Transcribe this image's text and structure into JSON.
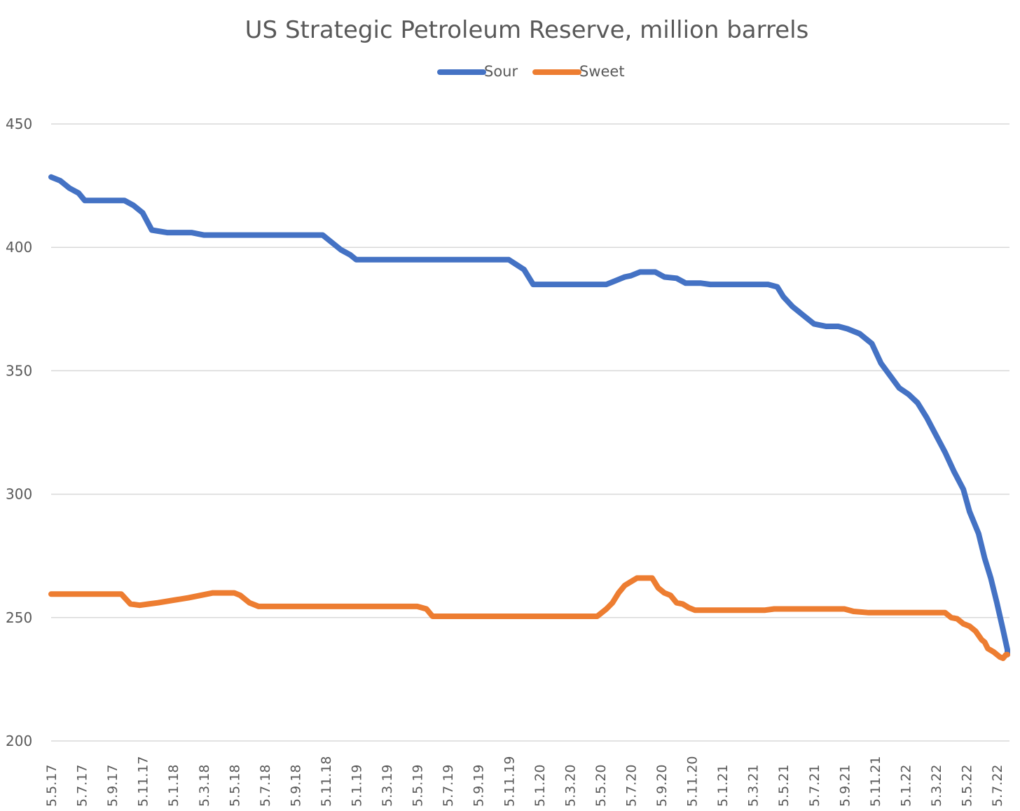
{
  "chart_data": {
    "type": "line",
    "title": "US Strategic Petroleum Reserve, million barrels",
    "xlabel": "",
    "ylabel": "",
    "ylim": [
      200,
      450
    ],
    "y_ticks": [
      "450",
      "400",
      "350",
      "300",
      "250",
      "200"
    ],
    "grid": true,
    "legend_position": "top",
    "x_tick_labels": [
      "5.5.17",
      "5.7.17",
      "5.9.17",
      "5.11.17",
      "5.1.18",
      "5.3.18",
      "5.5.18",
      "5.7.18",
      "5.9.18",
      "5.11.18",
      "5.1.19",
      "5.3.19",
      "5.5.19",
      "5.7.19",
      "5.9.19",
      "5.11.19",
      "5.1.20",
      "5.3.20",
      "5.5.20",
      "5.7.20",
      "5.9.20",
      "5.11.20",
      "5.1.21",
      "5.3.21",
      "5.5.21",
      "5.7.21",
      "5.9.21",
      "5.11.21",
      "5.1.22",
      "5.3.22",
      "5.5.22",
      "5.7.22"
    ],
    "series": [
      {
        "name": "Sour",
        "color": "#4472C4",
        "points": [
          [
            0,
            428.5
          ],
          [
            0.3,
            427
          ],
          [
            0.6,
            424
          ],
          [
            0.9,
            422
          ],
          [
            1.1,
            419
          ],
          [
            1.5,
            419
          ],
          [
            2.0,
            419
          ],
          [
            2.4,
            419
          ],
          [
            2.7,
            417
          ],
          [
            3.0,
            414
          ],
          [
            3.3,
            407
          ],
          [
            3.8,
            406
          ],
          [
            4.3,
            406
          ],
          [
            4.6,
            406
          ],
          [
            5.0,
            405
          ],
          [
            5.5,
            405
          ],
          [
            6.0,
            405
          ],
          [
            6.5,
            405
          ],
          [
            7.0,
            405
          ],
          [
            7.5,
            405
          ],
          [
            8.0,
            405
          ],
          [
            8.5,
            405
          ],
          [
            8.9,
            405
          ],
          [
            9.2,
            402
          ],
          [
            9.5,
            399
          ],
          [
            9.8,
            397
          ],
          [
            10.0,
            395
          ],
          [
            10.5,
            395
          ],
          [
            11.0,
            395
          ],
          [
            11.5,
            395
          ],
          [
            12.0,
            395
          ],
          [
            12.5,
            395
          ],
          [
            13.0,
            395
          ],
          [
            13.5,
            395
          ],
          [
            14.0,
            395
          ],
          [
            14.5,
            395
          ],
          [
            15.0,
            395
          ],
          [
            15.5,
            391
          ],
          [
            15.8,
            385
          ],
          [
            16.3,
            385
          ],
          [
            16.8,
            385
          ],
          [
            17.3,
            385
          ],
          [
            17.8,
            385
          ],
          [
            18.2,
            385
          ],
          [
            18.5,
            386.5
          ],
          [
            18.8,
            388
          ],
          [
            19.0,
            388.5
          ],
          [
            19.3,
            390
          ],
          [
            19.8,
            390
          ],
          [
            20.1,
            388
          ],
          [
            20.5,
            387.5
          ],
          [
            20.8,
            385.5
          ],
          [
            21.3,
            385.5
          ],
          [
            21.6,
            385
          ],
          [
            22.0,
            385
          ],
          [
            22.5,
            385
          ],
          [
            23.0,
            385
          ],
          [
            23.5,
            385
          ],
          [
            23.8,
            384
          ],
          [
            24.0,
            380
          ],
          [
            24.3,
            376
          ],
          [
            24.6,
            373
          ],
          [
            25.0,
            369
          ],
          [
            25.4,
            368
          ],
          [
            25.8,
            368
          ],
          [
            26.1,
            367
          ],
          [
            26.5,
            365
          ],
          [
            26.9,
            361
          ],
          [
            27.2,
            353
          ],
          [
            27.5,
            348
          ],
          [
            27.8,
            343
          ],
          [
            28.1,
            340.5
          ],
          [
            28.4,
            337
          ],
          [
            28.7,
            331
          ],
          [
            29.0,
            324
          ],
          [
            29.3,
            317
          ],
          [
            29.6,
            309
          ],
          [
            29.9,
            302
          ],
          [
            30.1,
            293
          ],
          [
            30.4,
            284
          ],
          [
            30.6,
            274
          ],
          [
            30.8,
            266
          ],
          [
            31.0,
            256
          ],
          [
            31.2,
            245
          ],
          [
            31.4,
            237
          ],
          [
            31.45,
            235
          ]
        ]
      },
      {
        "name": "Sweet",
        "color": "#ED7D31",
        "points": [
          [
            0,
            259.5
          ],
          [
            0.5,
            259.5
          ],
          [
            1.0,
            259.5
          ],
          [
            1.5,
            259.5
          ],
          [
            2.0,
            259.5
          ],
          [
            2.3,
            259.5
          ],
          [
            2.6,
            255.5
          ],
          [
            2.9,
            255
          ],
          [
            3.2,
            255.5
          ],
          [
            3.5,
            256
          ],
          [
            4.0,
            257
          ],
          [
            4.5,
            258
          ],
          [
            4.9,
            259
          ],
          [
            5.3,
            260
          ],
          [
            6.0,
            260
          ],
          [
            6.2,
            259
          ],
          [
            6.5,
            256
          ],
          [
            6.8,
            254.5
          ],
          [
            7.5,
            254.5
          ],
          [
            8.5,
            254.5
          ],
          [
            9.5,
            254.5
          ],
          [
            10.5,
            254.5
          ],
          [
            11.5,
            254.5
          ],
          [
            12.0,
            254.5
          ],
          [
            12.3,
            253.5
          ],
          [
            12.5,
            250.5
          ],
          [
            13.0,
            250.5
          ],
          [
            14.0,
            250.5
          ],
          [
            15.0,
            250.5
          ],
          [
            16.0,
            250.5
          ],
          [
            17.0,
            250.5
          ],
          [
            17.9,
            250.5
          ],
          [
            18.2,
            253.5
          ],
          [
            18.4,
            256
          ],
          [
            18.6,
            260
          ],
          [
            18.8,
            263
          ],
          [
            19.0,
            264.5
          ],
          [
            19.2,
            266
          ],
          [
            19.5,
            266
          ],
          [
            19.7,
            266
          ],
          [
            19.9,
            262
          ],
          [
            20.1,
            260
          ],
          [
            20.3,
            259
          ],
          [
            20.5,
            256
          ],
          [
            20.7,
            255.5
          ],
          [
            20.9,
            254
          ],
          [
            21.1,
            253
          ],
          [
            21.5,
            253
          ],
          [
            22.0,
            253
          ],
          [
            23.0,
            253
          ],
          [
            23.4,
            253
          ],
          [
            23.7,
            253.5
          ],
          [
            24.5,
            253.5
          ],
          [
            25.5,
            253.5
          ],
          [
            26.0,
            253.5
          ],
          [
            26.3,
            252.5
          ],
          [
            26.8,
            252
          ],
          [
            27.5,
            252
          ],
          [
            28.0,
            252
          ],
          [
            28.5,
            252
          ],
          [
            29.0,
            252
          ],
          [
            29.3,
            252
          ],
          [
            29.5,
            250
          ],
          [
            29.7,
            249.5
          ],
          [
            29.9,
            247.5
          ],
          [
            30.1,
            246.5
          ],
          [
            30.3,
            244.5
          ],
          [
            30.5,
            241
          ],
          [
            30.6,
            240
          ],
          [
            30.7,
            237.5
          ],
          [
            30.9,
            236
          ],
          [
            31.1,
            234
          ],
          [
            31.2,
            233.5
          ],
          [
            31.3,
            235
          ],
          [
            31.45,
            235
          ]
        ]
      }
    ]
  }
}
